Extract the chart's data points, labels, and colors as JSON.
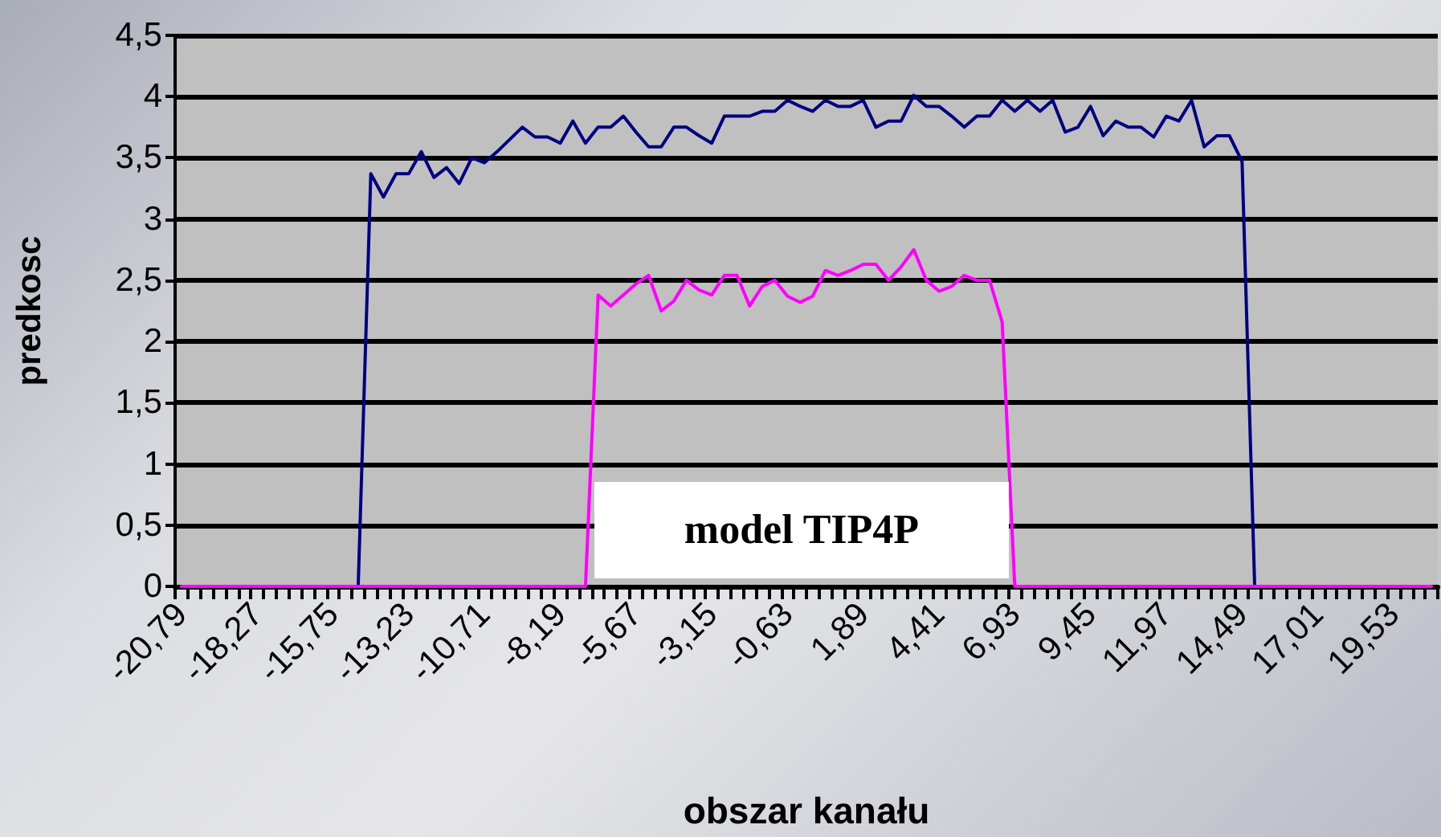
{
  "chart_data": {
    "type": "line",
    "xlabel": "obszar kanału",
    "ylabel": "predkosc",
    "annotations": [
      "model TIP4P"
    ],
    "categories": [
      "-20,79",
      null,
      null,
      null,
      null,
      null,
      "-18,27",
      null,
      null,
      null,
      null,
      null,
      "-15,75",
      null,
      null,
      null,
      null,
      null,
      "-13,23",
      null,
      null,
      null,
      null,
      null,
      "-10,71",
      null,
      null,
      null,
      null,
      null,
      "-8,19",
      null,
      null,
      null,
      null,
      null,
      "-5,67",
      null,
      null,
      null,
      null,
      null,
      "-3,15",
      null,
      null,
      null,
      null,
      null,
      "-0,63",
      null,
      null,
      null,
      null,
      null,
      "1,89",
      null,
      null,
      null,
      null,
      null,
      "4,41",
      null,
      null,
      null,
      null,
      null,
      "6,93",
      null,
      null,
      null,
      null,
      null,
      "9,45",
      null,
      null,
      null,
      null,
      null,
      "11,97",
      null,
      null,
      null,
      null,
      null,
      "14,49",
      null,
      null,
      null,
      null,
      null,
      "17,01",
      null,
      null,
      null,
      null,
      null,
      "19,53",
      null,
      null,
      null
    ],
    "series": [
      {
        "color": "#000080",
        "values": [
          null,
          null,
          null,
          null,
          null,
          null,
          null,
          null,
          null,
          null,
          null,
          null,
          0,
          0,
          0,
          3.37,
          3.18,
          3.37,
          3.37,
          3.55,
          3.34,
          3.42,
          3.29,
          3.5,
          3.46,
          3.55,
          3.65,
          3.75,
          3.67,
          3.67,
          3.62,
          3.8,
          3.62,
          3.75,
          3.75,
          3.84,
          3.71,
          3.59,
          3.59,
          3.75,
          3.75,
          3.68,
          3.62,
          3.84,
          3.84,
          3.84,
          3.88,
          3.88,
          3.97,
          3.92,
          3.88,
          3.97,
          3.92,
          3.92,
          3.97,
          3.75,
          3.8,
          3.8,
          4.01,
          3.92,
          3.92,
          3.84,
          3.75,
          3.84,
          3.84,
          3.97,
          3.88,
          3.97,
          3.88,
          3.97,
          3.71,
          3.75,
          3.92,
          3.68,
          3.8,
          3.75,
          3.75,
          3.67,
          3.84,
          3.8,
          3.97,
          3.59,
          3.68,
          3.68,
          3.47,
          0,
          0,
          0,
          null,
          null,
          null,
          null,
          null,
          null,
          null,
          null,
          null,
          null,
          null,
          null
        ]
      },
      {
        "color": "#ff00ff",
        "values": [
          0,
          0,
          0,
          0,
          0,
          0,
          0,
          0,
          0,
          0,
          0,
          0,
          0,
          0,
          0,
          0,
          0,
          0,
          0,
          0,
          0,
          0,
          0,
          0,
          0,
          0,
          0,
          0,
          0,
          0,
          0,
          0,
          0,
          2.38,
          2.29,
          2.38,
          2.47,
          2.54,
          2.25,
          2.33,
          2.5,
          2.42,
          2.38,
          2.54,
          2.54,
          2.29,
          2.45,
          2.5,
          2.37,
          2.32,
          2.37,
          2.58,
          2.54,
          2.58,
          2.63,
          2.63,
          2.5,
          2.61,
          2.75,
          2.5,
          2.41,
          2.45,
          2.54,
          2.5,
          2.5,
          2.16,
          0,
          0,
          0,
          0,
          0,
          0,
          0,
          0,
          0,
          0,
          0,
          0,
          0,
          0,
          0,
          0,
          0,
          0,
          0,
          0,
          0,
          0,
          0,
          0,
          0,
          0,
          0,
          0,
          0,
          0,
          0,
          0,
          0,
          0
        ]
      }
    ],
    "ylim": [
      0,
      4.5
    ],
    "yticks": [
      0,
      {
        "value": 0.5,
        "label": "0,5"
      },
      1,
      {
        "value": 1.5,
        "label": "1,5"
      },
      2,
      {
        "value": 2.5,
        "label": "2,5"
      },
      3,
      {
        "value": 3.5,
        "label": "3,5"
      },
      4,
      {
        "value": 4.5,
        "label": "4,5"
      }
    ],
    "grid": "y",
    "marker": "none",
    "line_style": "solid"
  }
}
